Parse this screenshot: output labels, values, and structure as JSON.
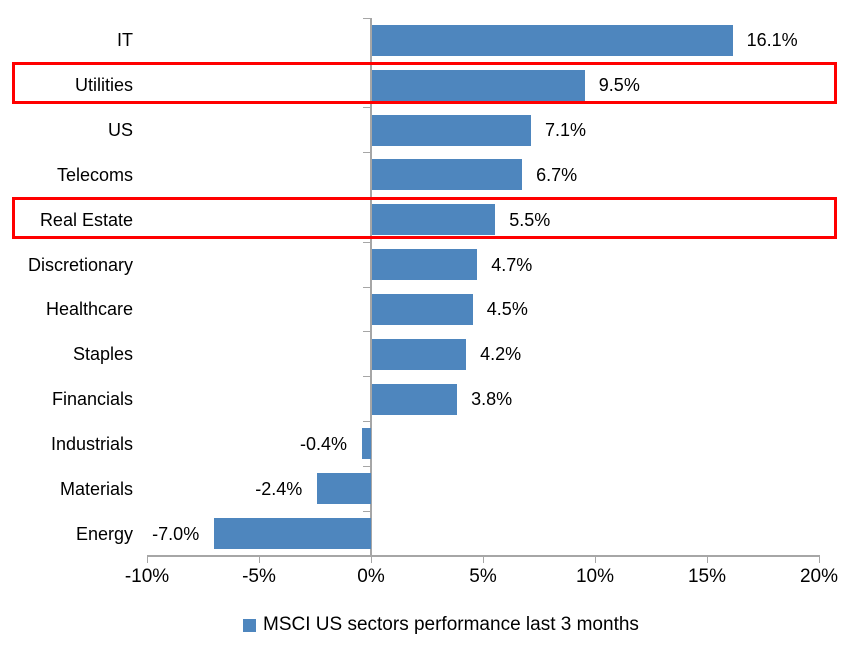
{
  "chart_data": {
    "type": "bar",
    "orientation": "horizontal",
    "title": "",
    "xlabel": "",
    "ylabel": "",
    "categories": [
      "IT",
      "Utilities",
      "US",
      "Telecoms",
      "Real Estate",
      "Discretionary",
      "Healthcare",
      "Staples",
      "Financials",
      "Industrials",
      "Materials",
      "Energy"
    ],
    "values": [
      16.1,
      9.5,
      7.1,
      6.7,
      5.5,
      4.7,
      4.5,
      4.2,
      3.8,
      -0.4,
      -2.4,
      -7.0
    ],
    "value_labels": [
      "16.1%",
      "9.5%",
      "7.1%",
      "6.7%",
      "5.5%",
      "4.7%",
      "4.5%",
      "4.2%",
      "3.8%",
      "-0.4%",
      "-2.4%",
      "-7.0%"
    ],
    "xlim": [
      -10,
      20
    ],
    "x_tick_values": [
      -10,
      -5,
      0,
      5,
      10,
      15,
      20
    ],
    "x_tick_labels": [
      "-10%",
      "-5%",
      "0%",
      "5%",
      "10%",
      "15%",
      "20%"
    ],
    "grid": false,
    "legend_position": "bottom-center",
    "legend": {
      "label": "MSCI US sectors performance last 3 months",
      "marker": "square-icon"
    },
    "colors": {
      "bar": "#4e86be",
      "axis": "#a6a6a6",
      "text": "#000000",
      "highlight_border": "#ff0000",
      "background": "#ffffff"
    },
    "highlighted_categories": [
      "Utilities",
      "Real Estate"
    ]
  }
}
